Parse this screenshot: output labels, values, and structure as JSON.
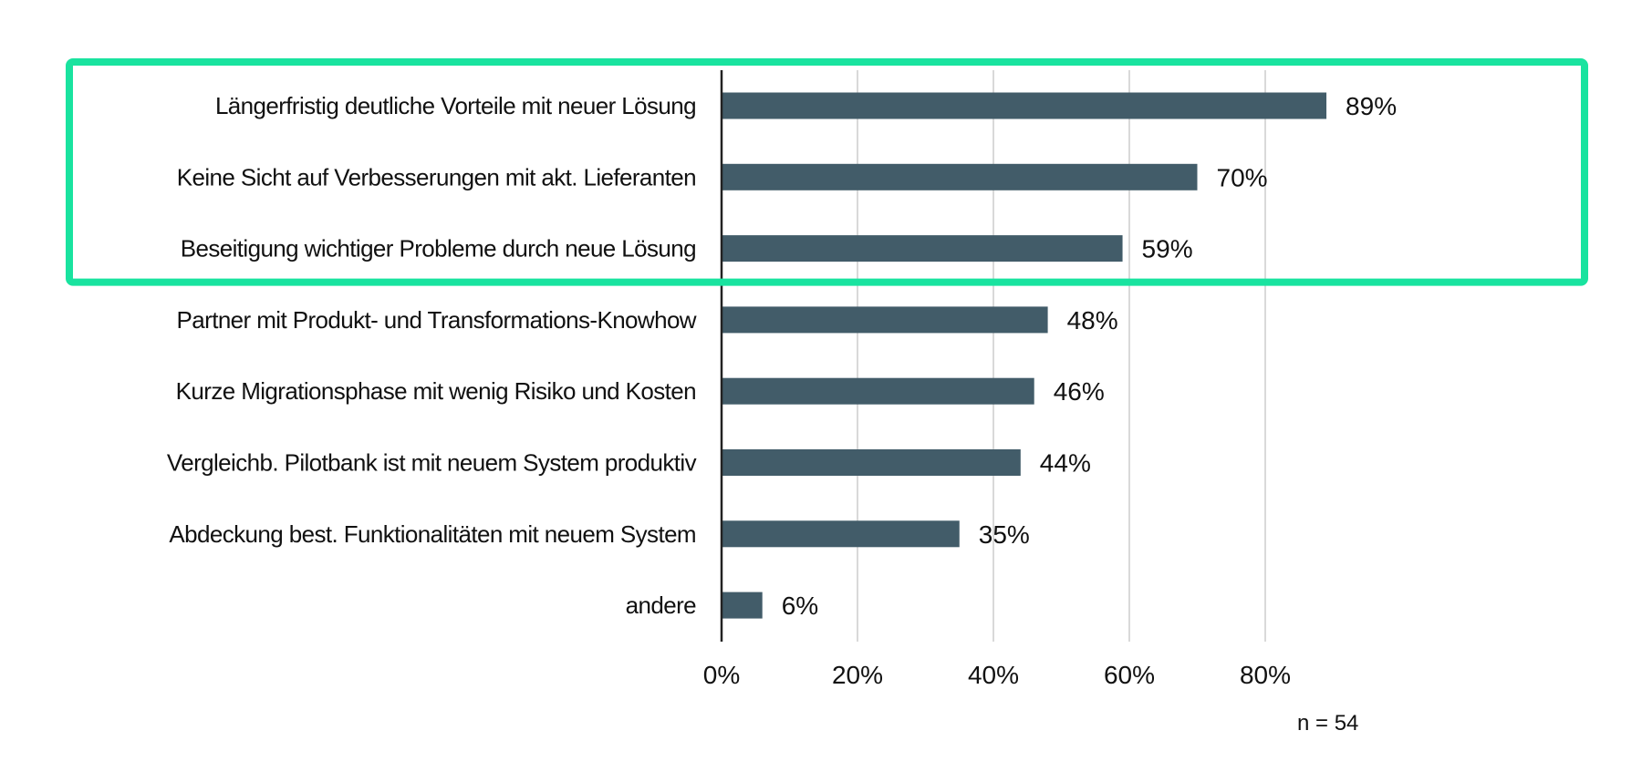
{
  "chart_data": {
    "type": "bar",
    "orientation": "horizontal",
    "categories": [
      "Längerfristig deutliche Vorteile mit neuer Lösung",
      "Keine Sicht auf Verbesserungen mit akt. Lieferanten",
      "Beseitigung wichtiger Probleme durch neue Lösung",
      "Partner mit Produkt- und Transformations-Knowhow",
      "Kurze Migrationsphase mit wenig Risiko und Kosten",
      "Vergleichb. Pilotbank ist mit neuem System produktiv",
      "Abdeckung best. Funktionalitäten mit neuem System",
      "andere"
    ],
    "values": [
      89,
      70,
      59,
      48,
      46,
      44,
      35,
      6
    ],
    "value_labels": [
      "89%",
      "70%",
      "59%",
      "48%",
      "46%",
      "44%",
      "35%",
      "6%"
    ],
    "x_ticks": [
      "0%",
      "20%",
      "40%",
      "60%",
      "80%"
    ],
    "xlim": [
      0,
      100
    ],
    "grid": "vertical",
    "note": "n = 54",
    "highlight": {
      "categories_highlighted": 3,
      "color": "#19e39f"
    },
    "colors": {
      "bar": "#425c69",
      "grid": "#d9d9d9",
      "axis": "#222222"
    }
  }
}
